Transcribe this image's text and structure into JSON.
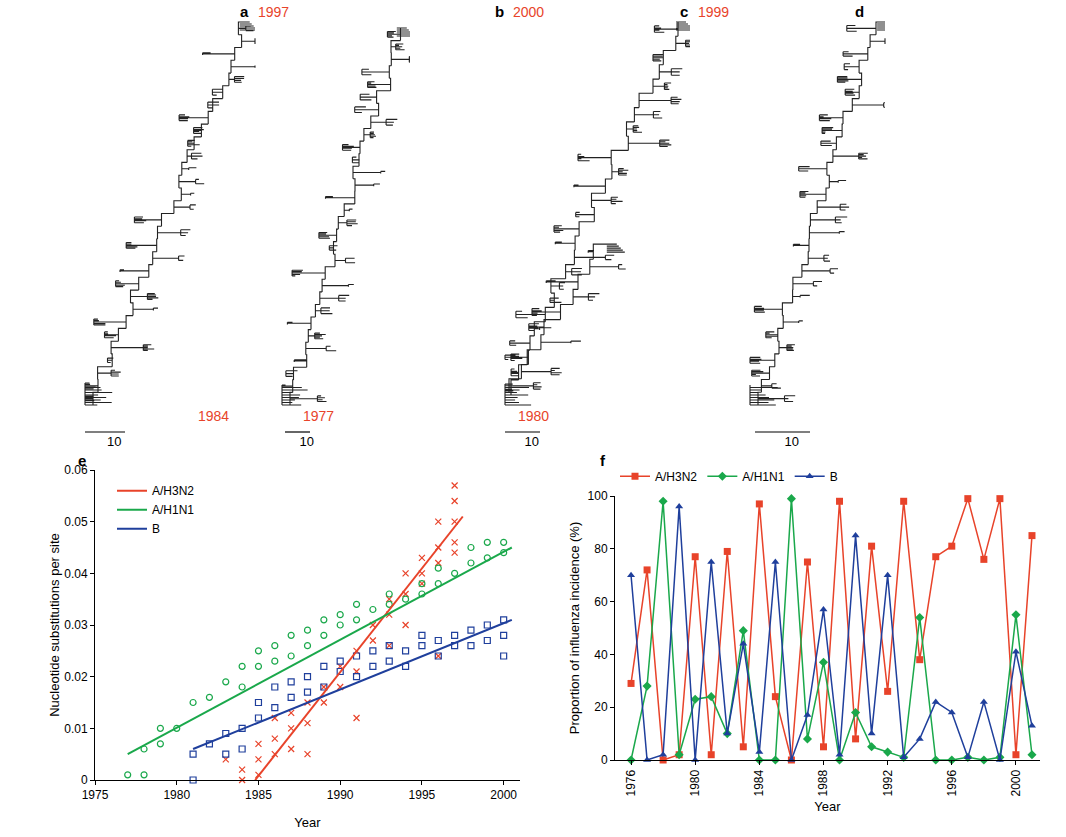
{
  "trees": {
    "panels": [
      {
        "letter": "a",
        "top_year": "1997",
        "bottom_year": "1984",
        "scale_label": "10"
      },
      {
        "letter": "b",
        "top_year": "2000",
        "bottom_year": "1977",
        "scale_label": "10"
      },
      {
        "letter": "c",
        "top_year": "1999",
        "bottom_year": "1980",
        "scale_label": "10"
      },
      {
        "letter": "d",
        "scale_label": "10"
      }
    ]
  },
  "chart_data": [
    {
      "panel": "e",
      "type": "scatter",
      "xlabel": "Year",
      "ylabel": "Nucleotide substitutions per site",
      "xlim": [
        1975,
        2001
      ],
      "xticks": [
        1975,
        1980,
        1985,
        1990,
        1995,
        2000
      ],
      "ylim": [
        0,
        0.06
      ],
      "yticks": [
        0,
        0.01,
        0.02,
        0.03,
        0.04,
        0.05,
        0.06
      ],
      "grid": false,
      "legend": "upper left",
      "series": [
        {
          "name": "A/H3N2",
          "color": "#e8432a",
          "marker": "x",
          "x": [
            1983,
            1984,
            1984,
            1985,
            1985,
            1985,
            1986,
            1986,
            1986,
            1987,
            1987,
            1987,
            1988,
            1988,
            1988,
            1989,
            1989,
            1990,
            1990,
            1991,
            1991,
            1991,
            1992,
            1992,
            1993,
            1993,
            1993,
            1994,
            1994,
            1994,
            1995,
            1995,
            1995,
            1996,
            1996,
            1996,
            1996,
            1997,
            1997,
            1997,
            1997,
            1997
          ],
          "values": [
            0.004,
            0.0,
            0.002,
            0.004,
            0.007,
            0.001,
            0.005,
            0.008,
            0.012,
            0.01,
            0.013,
            0.006,
            0.015,
            0.011,
            0.005,
            0.018,
            0.015,
            0.018,
            0.022,
            0.025,
            0.012,
            0.021,
            0.027,
            0.03,
            0.032,
            0.035,
            0.026,
            0.036,
            0.04,
            0.03,
            0.043,
            0.04,
            0.038,
            0.045,
            0.05,
            0.042,
            0.024,
            0.05,
            0.054,
            0.057,
            0.046,
            0.044
          ],
          "trend_x": [
            1984.8,
            1997.5
          ],
          "trend_values": [
            0.0,
            0.051
          ]
        },
        {
          "name": "A/H1N1",
          "color": "#1aa84b",
          "marker": "circle-open",
          "x": [
            1977,
            1978,
            1978,
            1979,
            1979,
            1980,
            1981,
            1982,
            1983,
            1984,
            1984,
            1985,
            1985,
            1986,
            1986,
            1987,
            1987,
            1988,
            1988,
            1989,
            1989,
            1990,
            1990,
            1991,
            1991,
            1992,
            1993,
            1993,
            1994,
            1995,
            1995,
            1996,
            1996,
            1997,
            1998,
            1998,
            1999,
            1999,
            2000,
            2000
          ],
          "values": [
            0.001,
            0.006,
            0.001,
            0.01,
            0.007,
            0.01,
            0.015,
            0.016,
            0.019,
            0.022,
            0.018,
            0.025,
            0.022,
            0.026,
            0.023,
            0.028,
            0.024,
            0.026,
            0.029,
            0.028,
            0.031,
            0.032,
            0.03,
            0.031,
            0.034,
            0.033,
            0.036,
            0.034,
            0.035,
            0.038,
            0.036,
            0.041,
            0.038,
            0.04,
            0.042,
            0.045,
            0.043,
            0.046,
            0.044,
            0.046
          ],
          "trend_x": [
            1977,
            2000.5
          ],
          "trend_values": [
            0.005,
            0.045
          ]
        },
        {
          "name": "B",
          "color": "#1f3f9c",
          "marker": "square-open",
          "x": [
            1981,
            1981,
            1982,
            1983,
            1983,
            1984,
            1984,
            1985,
            1985,
            1986,
            1986,
            1987,
            1987,
            1988,
            1988,
            1989,
            1989,
            1990,
            1990,
            1991,
            1991,
            1992,
            1992,
            1993,
            1993,
            1994,
            1994,
            1995,
            1995,
            1996,
            1996,
            1997,
            1997,
            1998,
            1998,
            1999,
            1999,
            2000,
            2000,
            2000
          ],
          "values": [
            0.0,
            0.005,
            0.007,
            0.009,
            0.005,
            0.006,
            0.01,
            0.012,
            0.015,
            0.018,
            0.014,
            0.016,
            0.019,
            0.02,
            0.017,
            0.022,
            0.018,
            0.021,
            0.023,
            0.024,
            0.02,
            0.022,
            0.025,
            0.023,
            0.026,
            0.025,
            0.022,
            0.026,
            0.028,
            0.027,
            0.024,
            0.028,
            0.026,
            0.029,
            0.026,
            0.03,
            0.027,
            0.031,
            0.024,
            0.028
          ],
          "trend_x": [
            1981,
            2000.5
          ],
          "trend_values": [
            0.006,
            0.031
          ]
        }
      ]
    },
    {
      "panel": "f",
      "type": "line",
      "xlabel": "Year",
      "ylabel": "Proportion of influenza incidence (%)",
      "x": [
        1976,
        1977,
        1978,
        1979,
        1980,
        1981,
        1982,
        1983,
        1984,
        1985,
        1986,
        1987,
        1988,
        1989,
        1990,
        1991,
        1992,
        1993,
        1994,
        1995,
        1996,
        1997,
        1998,
        1999,
        2000,
        2001
      ],
      "xlim": [
        1975,
        2001.5
      ],
      "xticks": [
        1976,
        1980,
        1984,
        1988,
        1992,
        1996,
        2000
      ],
      "ylim": [
        0,
        100
      ],
      "yticks": [
        0,
        20,
        40,
        60,
        80,
        100
      ],
      "grid": false,
      "legend": "top",
      "series": [
        {
          "name": "A/H3N2",
          "color": "#e8432a",
          "marker": "square",
          "values": [
            29,
            72,
            0,
            2,
            77,
            2,
            79,
            5,
            97,
            24,
            0,
            75,
            5,
            98,
            8,
            81,
            26,
            98,
            38,
            77,
            81,
            99,
            76,
            99,
            2,
            85
          ]
        },
        {
          "name": "A/H1N1",
          "color": "#1aa84b",
          "marker": "diamond",
          "values": [
            0,
            28,
            98,
            2,
            23,
            24,
            10,
            49,
            0,
            0,
            99,
            8,
            37,
            0,
            18,
            5,
            3,
            1,
            54,
            0,
            0,
            1,
            0,
            1,
            55,
            2
          ]
        },
        {
          "name": "B",
          "color": "#1f3f9c",
          "marker": "triangle-up",
          "values": [
            70,
            0,
            2,
            96,
            0,
            75,
            10,
            44,
            3,
            75,
            0,
            17,
            57,
            2,
            85,
            10,
            70,
            1,
            8,
            22,
            18,
            1,
            22,
            0,
            41,
            13
          ]
        }
      ]
    }
  ]
}
